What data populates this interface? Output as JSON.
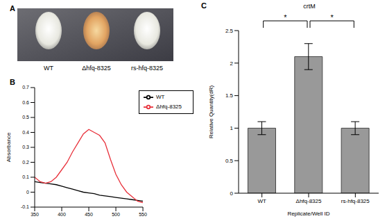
{
  "photo": {
    "panel_label": "A",
    "labels": [
      "WT",
      "Δhfq-8325",
      "rs-hfq-8325"
    ]
  },
  "chart_data": [
    {
      "type": "line",
      "panel_label": "B",
      "y_label": "Absorbance",
      "x": [
        350,
        360,
        370,
        380,
        390,
        400,
        410,
        420,
        430,
        440,
        450,
        460,
        470,
        480,
        490,
        500,
        510,
        520,
        530,
        540,
        550
      ],
      "series": [
        {
          "name": "WT",
          "color": "#000000",
          "values": [
            0.07,
            0.065,
            0.06,
            0.055,
            0.05,
            0.04,
            0.03,
            0.02,
            0.01,
            0.0,
            -0.005,
            -0.01,
            -0.02,
            -0.025,
            -0.03,
            -0.035,
            -0.04,
            -0.045,
            -0.05,
            -0.055,
            -0.06
          ]
        },
        {
          "name": "Δhfq-8325",
          "color": "#e8303a",
          "values": [
            0.1,
            0.07,
            0.06,
            0.07,
            0.1,
            0.15,
            0.2,
            0.27,
            0.33,
            0.39,
            0.42,
            0.4,
            0.38,
            0.33,
            0.22,
            0.12,
            0.05,
            0.0,
            -0.03,
            -0.06,
            -0.07
          ]
        }
      ],
      "xlim": [
        350,
        550
      ],
      "xticks": [
        350,
        400,
        450,
        500,
        550
      ],
      "ylim": [
        -0.1,
        0.7
      ],
      "yticks": [
        -0.1,
        0,
        0.1,
        0.2,
        0.3,
        0.4,
        0.5,
        0.6,
        0.7
      ],
      "legend": "upper right",
      "grid": false
    },
    {
      "type": "bar",
      "panel_label": "C",
      "title": "crtM",
      "x_label": "Replicate/Well ID",
      "y_label": "Relative Quantity(dR)",
      "categories": [
        "WT",
        "Δhfq-8325",
        "rs-hfq-8325"
      ],
      "values": [
        1,
        2.1,
        1
      ],
      "errors": [
        0.1,
        0.2,
        0.1
      ],
      "color": "#999999",
      "ylim": [
        0,
        2.5
      ],
      "yticks": [
        0,
        0.5,
        1,
        1.5,
        2,
        2.5
      ],
      "grid": false,
      "annotations": [
        {
          "text": "*",
          "from": "WT",
          "to": "Δhfq-8325"
        },
        {
          "text": "*",
          "from": "Δhfq-8325",
          "to": "rs-hfq-8325"
        }
      ]
    }
  ]
}
